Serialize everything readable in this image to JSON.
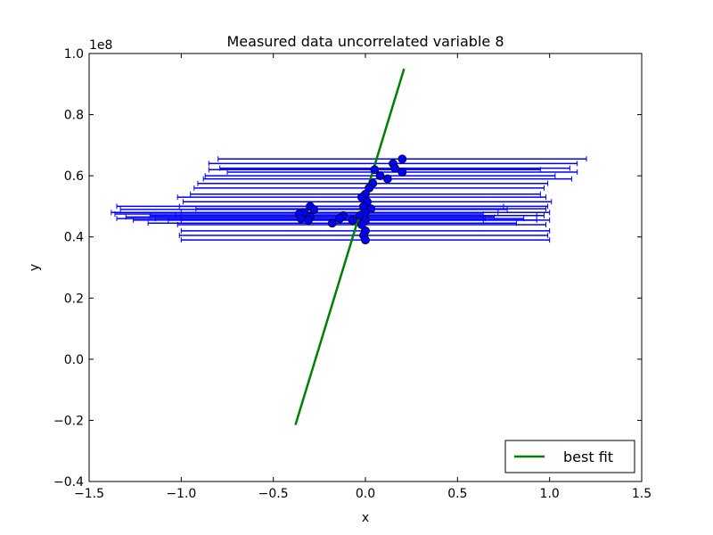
{
  "chart_data": {
    "type": "scatter",
    "title": "Measured data uncorrelated variable 8",
    "xlabel": "x",
    "ylabel": "y",
    "y_offset_label": "1e8",
    "xlim": [
      -1.5,
      1.5
    ],
    "ylim": [
      -0.4,
      1.0
    ],
    "y_scale": 100000000,
    "xticks": [
      -1.5,
      -1.0,
      -0.5,
      0.0,
      0.5,
      1.0,
      1.5
    ],
    "xtick_labels": [
      "−1.5",
      "−1.0",
      "−0.5",
      "0.0",
      "0.5",
      "1.0",
      "1.5"
    ],
    "yticks": [
      -0.4,
      -0.2,
      0.0,
      0.2,
      0.4,
      0.6,
      0.8,
      1.0
    ],
    "ytick_labels": [
      "−0.4",
      "−0.2",
      "0.0",
      "0.2",
      "0.4",
      "0.6",
      "0.8",
      "1.0"
    ],
    "grid": false,
    "legend": {
      "position": "lower-right",
      "entries": [
        "best fit"
      ]
    },
    "colors": {
      "errorbar": "#0000ff",
      "marker_fill": "#0000ff",
      "fit_line": "#008000",
      "axes": "#000000"
    },
    "series": [
      {
        "type": "errorbar-scatter",
        "points": [
          {
            "x": 0.2,
            "y": 0.655,
            "xerr": 1.0,
            "yerr": 0.0
          },
          {
            "x": 0.15,
            "y": 0.64,
            "xerr": 1.0,
            "yerr": 0.0
          },
          {
            "x": 0.16,
            "y": 0.625,
            "xerr": 0.95,
            "yerr": 0.0
          },
          {
            "x": 0.2,
            "y": 0.612,
            "xerr": 0.95,
            "yerr": 0.0
          },
          {
            "x": 0.08,
            "y": 0.6,
            "xerr": 0.95,
            "yerr": 0.0
          },
          {
            "x": 0.12,
            "y": 0.59,
            "xerr": 1.0,
            "yerr": 0.0
          },
          {
            "x": 0.05,
            "y": 0.62,
            "xerr": 0.9,
            "yerr": 0.0
          },
          {
            "x": 0.04,
            "y": 0.575,
            "xerr": 0.95,
            "yerr": 0.0
          },
          {
            "x": 0.02,
            "y": 0.56,
            "xerr": 0.95,
            "yerr": 0.0
          },
          {
            "x": 0.0,
            "y": 0.54,
            "xerr": 0.95,
            "yerr": 0.0
          },
          {
            "x": -0.02,
            "y": 0.53,
            "xerr": 1.0,
            "yerr": 0.0
          },
          {
            "x": 0.01,
            "y": 0.515,
            "xerr": 1.0,
            "yerr": 0.0
          },
          {
            "x": -0.01,
            "y": 0.5,
            "xerr": 1.0,
            "yerr": 0.0
          },
          {
            "x": 0.03,
            "y": 0.492,
            "xerr": 0.95,
            "yerr": 0.0
          },
          {
            "x": 0.0,
            "y": 0.48,
            "xerr": 1.0,
            "yerr": 0.0
          },
          {
            "x": -0.03,
            "y": 0.47,
            "xerr": 1.0,
            "yerr": 0.0
          },
          {
            "x": 0.0,
            "y": 0.455,
            "xerr": 1.0,
            "yerr": 0.0
          },
          {
            "x": -0.02,
            "y": 0.44,
            "xerr": 1.0,
            "yerr": 0.0
          },
          {
            "x": 0.0,
            "y": 0.42,
            "xerr": 1.0,
            "yerr": 0.0
          },
          {
            "x": -0.01,
            "y": 0.405,
            "xerr": 1.0,
            "yerr": 0.0
          },
          {
            "x": 0.0,
            "y": 0.39,
            "xerr": 1.0,
            "yerr": 0.0
          },
          {
            "x": -0.3,
            "y": 0.5,
            "xerr": 1.05,
            "yerr": 0.0
          },
          {
            "x": -0.28,
            "y": 0.49,
            "xerr": 1.05,
            "yerr": 0.0
          },
          {
            "x": -0.33,
            "y": 0.48,
            "xerr": 1.05,
            "yerr": 0.0
          },
          {
            "x": -0.36,
            "y": 0.475,
            "xerr": 1.0,
            "yerr": 0.0
          },
          {
            "x": -0.3,
            "y": 0.465,
            "xerr": 1.0,
            "yerr": 0.0
          },
          {
            "x": -0.35,
            "y": 0.46,
            "xerr": 1.0,
            "yerr": 0.0
          },
          {
            "x": -0.31,
            "y": 0.455,
            "xerr": 0.95,
            "yerr": 0.0
          },
          {
            "x": -0.12,
            "y": 0.47,
            "xerr": 1.05,
            "yerr": 0.0
          },
          {
            "x": -0.14,
            "y": 0.46,
            "xerr": 1.0,
            "yerr": 0.0
          },
          {
            "x": -0.18,
            "y": 0.445,
            "xerr": 1.0,
            "yerr": 0.0
          },
          {
            "x": -0.07,
            "y": 0.455,
            "xerr": 1.0,
            "yerr": 0.0
          }
        ]
      },
      {
        "type": "line",
        "name": "best fit",
        "x": [
          -0.38,
          0.21
        ],
        "y": [
          -0.215,
          0.95
        ]
      }
    ]
  }
}
